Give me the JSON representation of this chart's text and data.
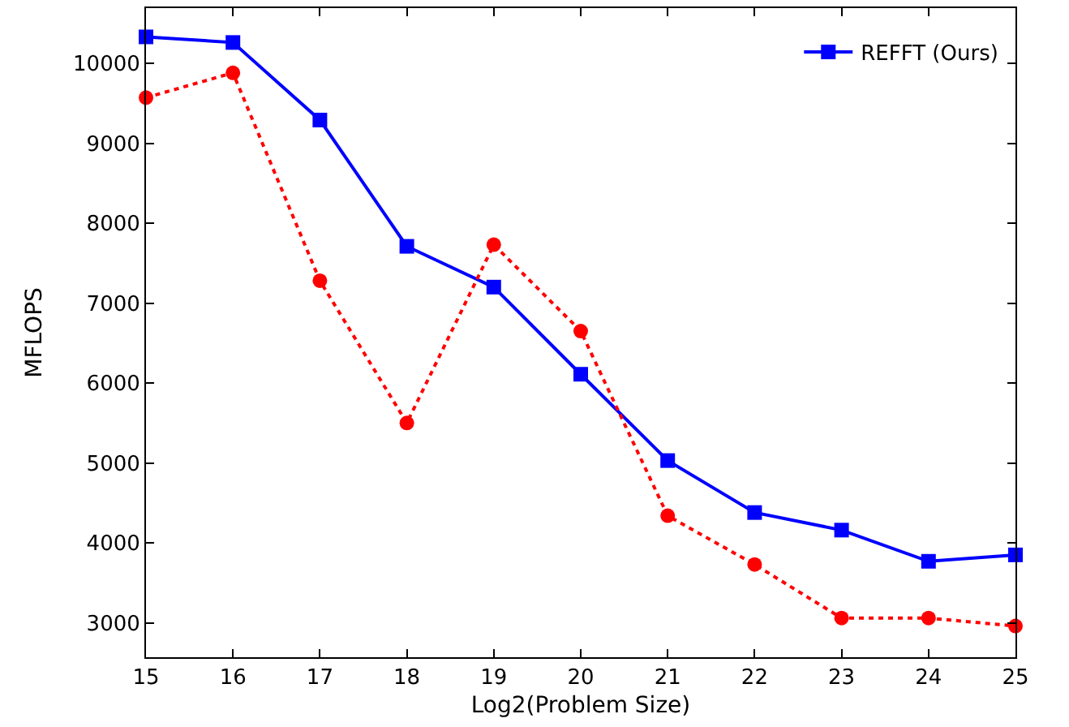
{
  "chart_data": {
    "type": "line",
    "xlabel": "Log2(Problem Size)",
    "ylabel": "MFLOPS",
    "x": [
      15,
      16,
      17,
      18,
      19,
      20,
      21,
      22,
      23,
      24,
      25
    ],
    "series": [
      {
        "name": "REFFT (Ours)",
        "color": "#0000ff",
        "marker": "square",
        "line_style": "solid",
        "values": [
          10330,
          10260,
          9290,
          7710,
          7200,
          6110,
          5030,
          4380,
          4160,
          3770,
          3850
        ]
      },
      {
        "color": "#ff0000",
        "marker": "circle",
        "line_style": "dotted",
        "values": [
          9570,
          9880,
          7280,
          5500,
          7730,
          6650,
          4340,
          3730,
          3060,
          3060,
          2960
        ]
      }
    ],
    "xlim": [
      15,
      25
    ],
    "xticks": [
      15,
      16,
      17,
      18,
      19,
      20,
      21,
      22,
      23,
      24,
      25
    ],
    "ylim": [
      2570,
      10690
    ],
    "yticks": [
      3000,
      4000,
      5000,
      6000,
      7000,
      8000,
      9000,
      10000
    ],
    "legend": "top right"
  }
}
